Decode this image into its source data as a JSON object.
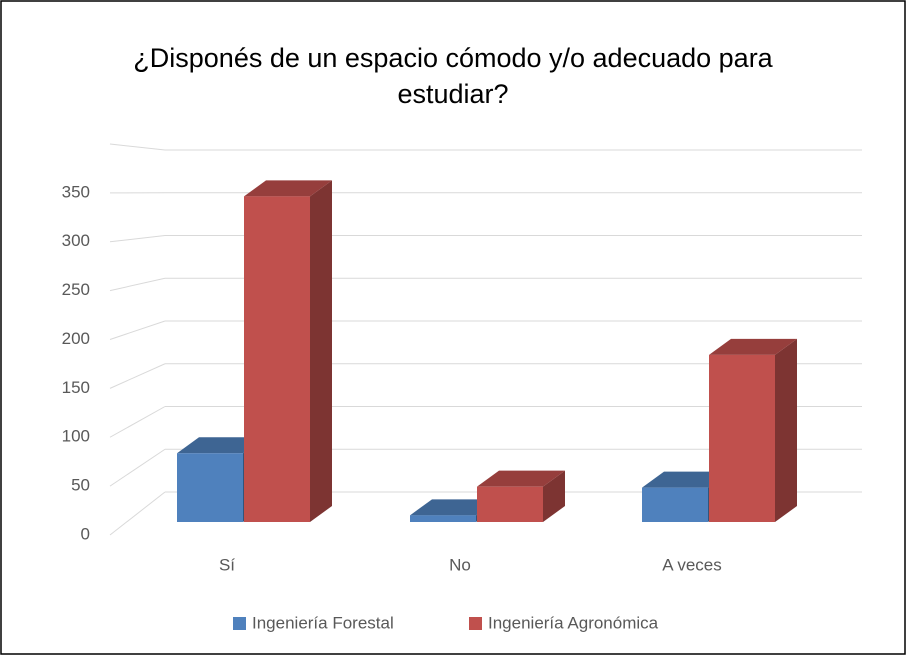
{
  "chart_data": {
    "type": "bar3d",
    "title": "¿Disponés de un espacio cómodo y/o adecuado para estudiar?",
    "categories": [
      "Sí",
      "No",
      "A veces"
    ],
    "series": [
      {
        "name": "Ingeniería Forestal",
        "color": "#4f81bd",
        "values": [
          72,
          7,
          36
        ]
      },
      {
        "name": "Ingeniería Agronómica",
        "color": "#c0504d",
        "values": [
          341,
          37,
          175
        ]
      }
    ],
    "ylim": [
      0,
      400
    ],
    "yticks": [
      0,
      50,
      100,
      150,
      200,
      250,
      300,
      350
    ],
    "grid": true,
    "legend": "bottom"
  }
}
